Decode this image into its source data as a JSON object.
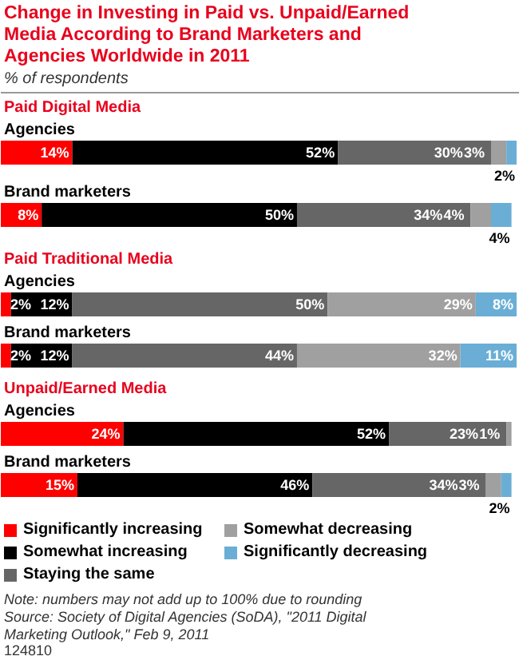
{
  "chart_data": [
    {
      "type": "bar",
      "orientation": "horizontal",
      "stacked": true,
      "data_labels": true,
      "legend": false,
      "title": "Change in Investing in Paid vs. Unpaid/Earned Media According to Brand Marketers and Agencies Worldwide in 2011",
      "subtitle": "% of respondents",
      "annotations": [
        "Paid Digital Media"
      ],
      "categories": [
        "Agencies",
        "Brand marketers"
      ],
      "series": [
        {
          "color": "#ff0000",
          "values": [
            14,
            8
          ],
          "value_labels": [
            "14%",
            "8%"
          ]
        },
        {
          "color": "#000000",
          "values": [
            52,
            50
          ],
          "value_labels": [
            "52%",
            "50%"
          ]
        },
        {
          "color": "#666666",
          "values": [
            30,
            34
          ],
          "value_labels": [
            "30%",
            "34%"
          ]
        },
        {
          "color": "#a0a0a0",
          "values": [
            3,
            4
          ],
          "value_labels": [
            "3%",
            "4%"
          ]
        },
        {
          "color": "#6aaed6",
          "values": [
            2,
            4
          ],
          "value_labels": [
            "2%",
            "4%"
          ]
        }
      ]
    },
    {
      "type": "bar",
      "orientation": "horizontal",
      "stacked": true,
      "data_labels": true,
      "legend": false,
      "annotations": [
        "Paid Traditional Media"
      ],
      "categories": [
        "Agencies",
        "Brand marketers"
      ],
      "series": [
        {
          "color": "#ff0000",
          "values": [
            2,
            2
          ],
          "value_labels": [
            "2%",
            "2%"
          ]
        },
        {
          "color": "#000000",
          "values": [
            12,
            12
          ],
          "value_labels": [
            "12%",
            "12%"
          ]
        },
        {
          "color": "#666666",
          "values": [
            50,
            44
          ],
          "value_labels": [
            "50%",
            "44%"
          ]
        },
        {
          "color": "#a0a0a0",
          "values": [
            29,
            32
          ],
          "value_labels": [
            "29%",
            "32%"
          ]
        },
        {
          "color": "#6aaed6",
          "values": [
            8,
            11
          ],
          "value_labels": [
            "8%",
            "11%"
          ]
        }
      ]
    },
    {
      "type": "bar",
      "orientation": "horizontal",
      "stacked": true,
      "data_labels": true,
      "legend": "bottom",
      "annotations": [
        "Unpaid/Earned Media",
        "Note: numbers may not add up to 100% due to rounding",
        "Source: Society of Digital Agencies (SoDA), \"2011 Digital Marketing Outlook,\" Feb 9, 2011",
        "124810"
      ],
      "categories": [
        "Agencies",
        "Brand marketers"
      ],
      "series": [
        {
          "name": "Significantly increasing",
          "color": "#ff0000",
          "values": [
            24,
            15
          ],
          "value_labels": [
            "24%",
            "15%"
          ]
        },
        {
          "name": "Somewhat increasing",
          "color": "#000000",
          "values": [
            52,
            46
          ],
          "value_labels": [
            "52%",
            "46%"
          ]
        },
        {
          "name": "Staying the same",
          "color": "#666666",
          "values": [
            23,
            34
          ],
          "value_labels": [
            "23%",
            "34%"
          ]
        },
        {
          "name": "Somewhat decreasing",
          "color": "#a0a0a0",
          "values": [
            1,
            3
          ],
          "value_labels": [
            "1%",
            "3%"
          ]
        },
        {
          "name": "Significantly decreasing",
          "color": "#6aaed6",
          "values": [
            null,
            2
          ],
          "value_labels": [
            null,
            "2%"
          ]
        }
      ]
    }
  ]
}
